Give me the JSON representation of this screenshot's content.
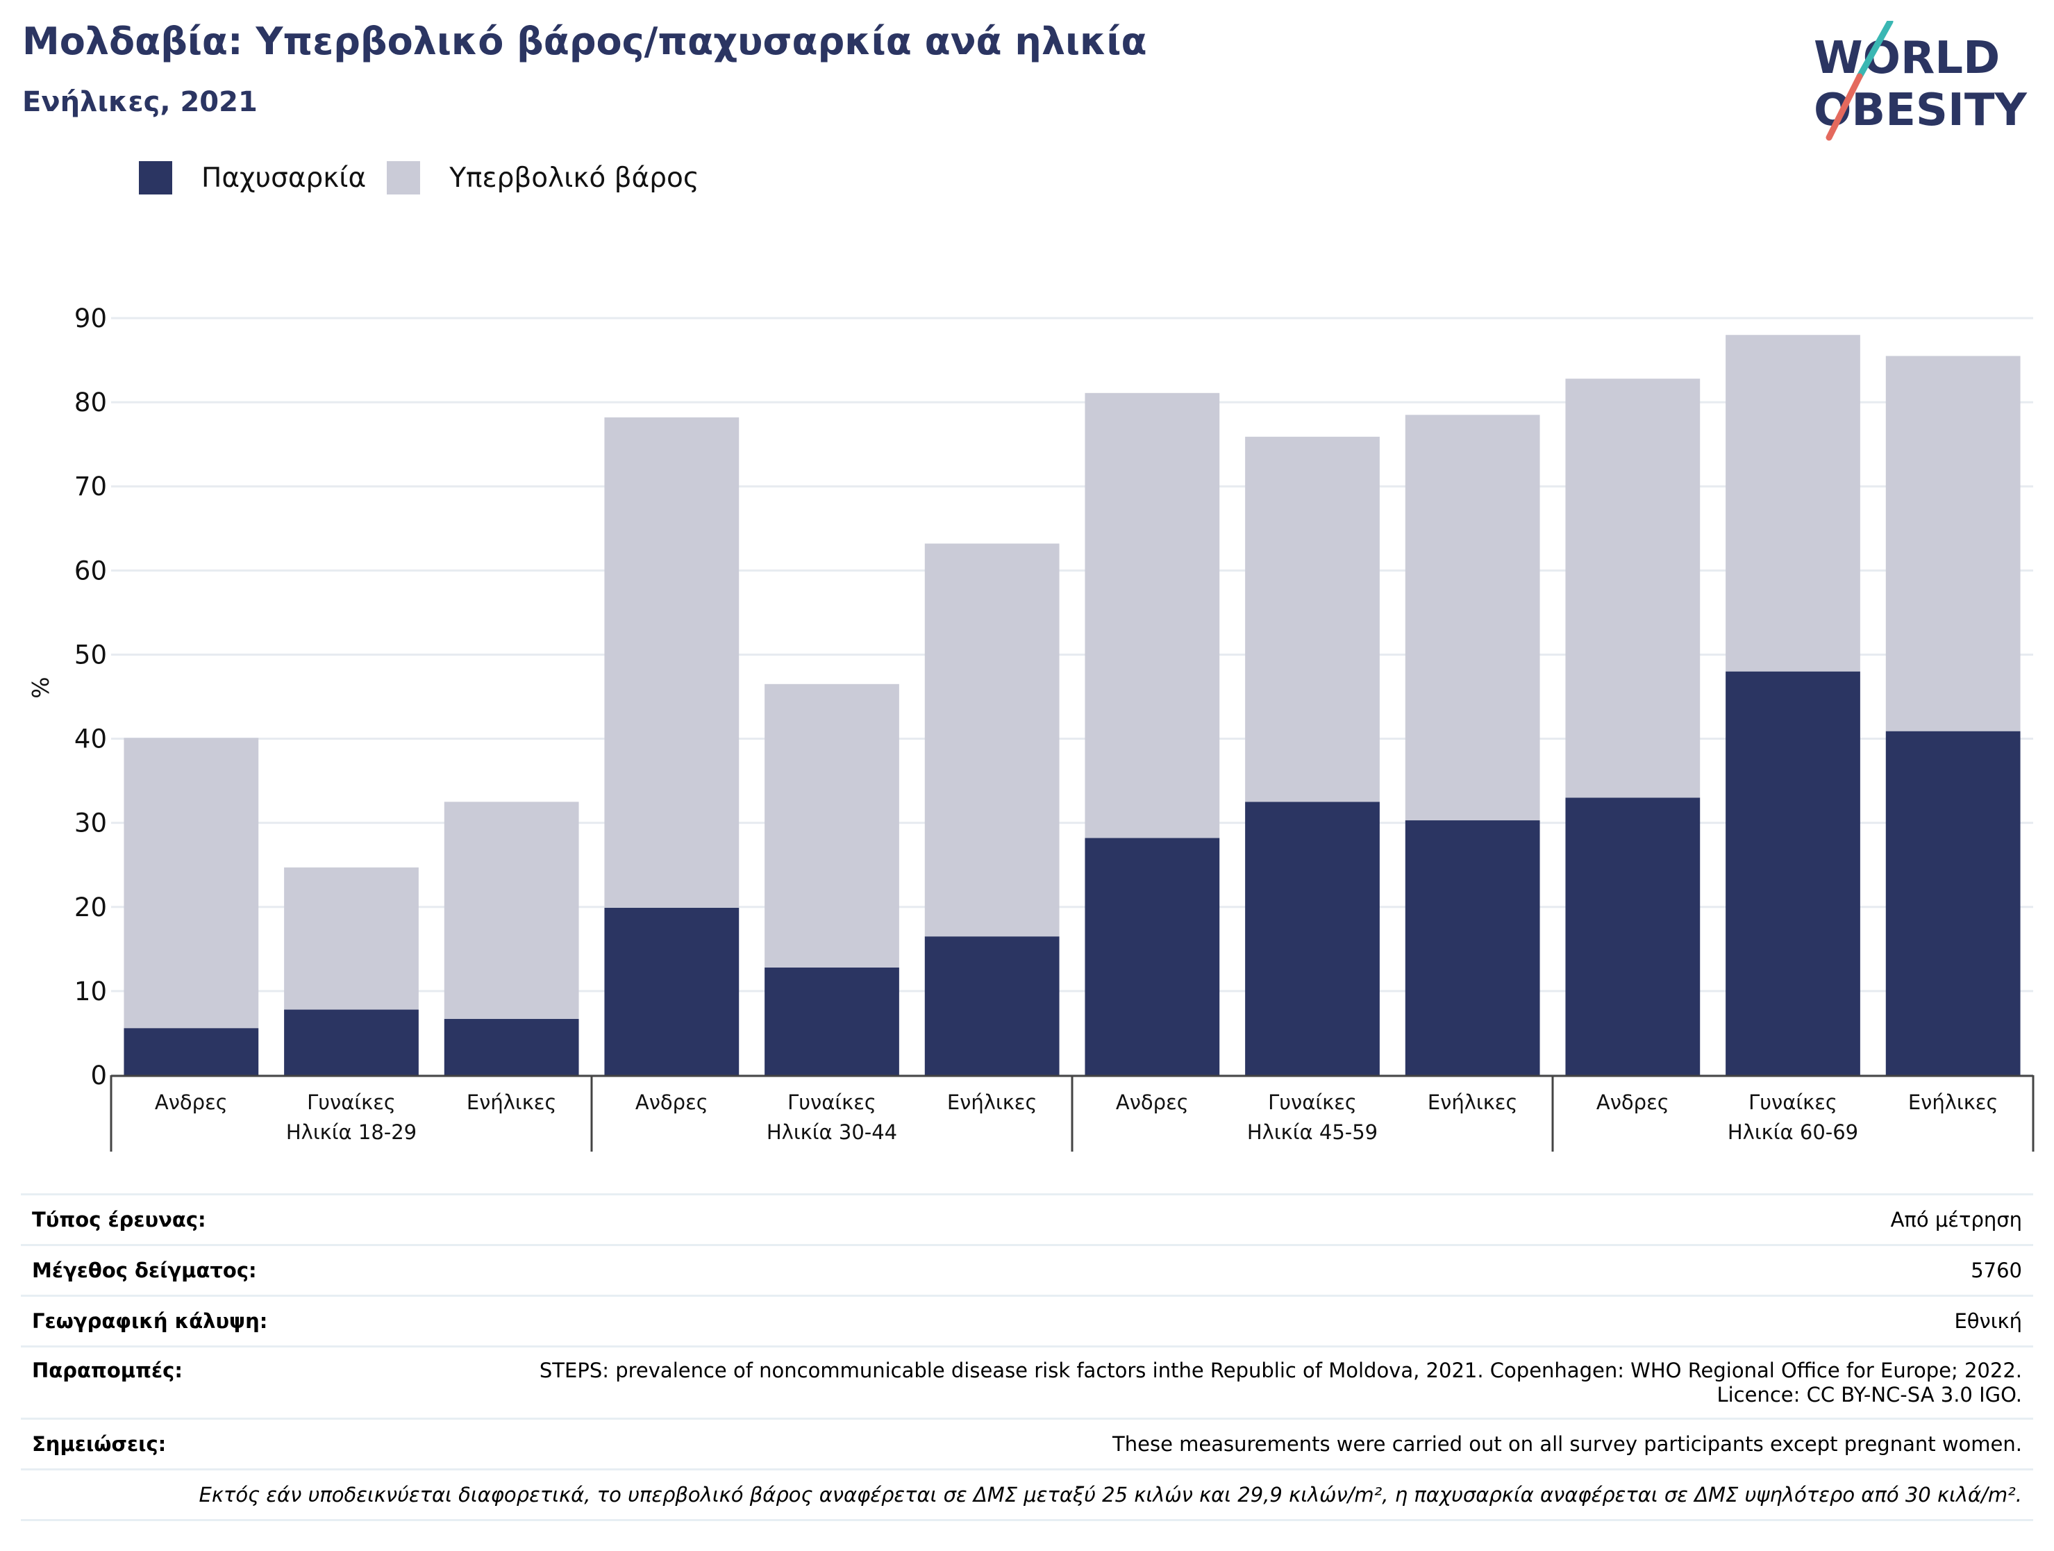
{
  "header": {
    "title": "Μολδαβία: Υπερβολικό βάρος/παχυσαρκία ανά ηλικία",
    "subtitle": "Ενήλικες, 2021"
  },
  "logo": {
    "line1": "WORLD",
    "line2": "OBESITY"
  },
  "colors": {
    "obesity": "#2b3562",
    "overweight": "#cacbd7",
    "grid": "#e7ebf0",
    "logo_slash_teal": "#3ab7b3",
    "logo_slash_red": "#e4695d"
  },
  "chart_data": {
    "type": "bar",
    "stacked": true,
    "ylabel": "%",
    "ylim": [
      0,
      90
    ],
    "yticks": [
      0,
      10,
      20,
      30,
      40,
      50,
      60,
      70,
      80,
      90
    ],
    "grid": true,
    "legend_position": "top-left",
    "groups": [
      "Ηλικία 18-29",
      "Ηλικία 30-44",
      "Ηλικία 45-59",
      "Ηλικία 60-69"
    ],
    "categories": [
      "Ανδρες",
      "Γυναίκες",
      "Ενήλικες",
      "Ανδρες",
      "Γυναίκες",
      "Ενήλικες",
      "Ανδρες",
      "Γυναίκες",
      "Ενήλικες",
      "Ανδρες",
      "Γυναίκες",
      "Ενήλικες"
    ],
    "series": [
      {
        "name": "Παχυσαρκία",
        "values": [
          5.6,
          7.8,
          6.7,
          19.9,
          12.8,
          16.5,
          28.2,
          32.5,
          30.3,
          33.0,
          48.0,
          40.9
        ]
      },
      {
        "name": "Υπερβολικό βάρος",
        "values": [
          34.5,
          16.9,
          25.8,
          58.3,
          33.7,
          46.7,
          52.9,
          43.4,
          48.2,
          49.8,
          40.0,
          44.6
        ]
      }
    ]
  },
  "info": {
    "rows": [
      {
        "label": "Τύπος έρευνας:",
        "value": "Από μέτρηση"
      },
      {
        "label": "Μέγεθος δείγματος:",
        "value": "5760"
      },
      {
        "label": "Γεωγραφική κάλυψη:",
        "value": "Εθνική"
      },
      {
        "label": "Παραπομπές:",
        "value": "STEPS: prevalence of noncommunicable disease risk factors inthe Republic of Moldova, 2021. Copenhagen: WHO Regional Office for Europe; 2022. Licence: CC BY-NC-SA 3.0 IGO."
      },
      {
        "label": "Σημειώσεις:",
        "value": "These measurements were carried out on all survey participants except pregnant women."
      }
    ],
    "footnote": "Εκτός εάν υποδεικνύεται διαφορετικά, το υπερβολικό βάρος αναφέρεται σε ΔΜΣ μεταξύ 25 κιλών και 29,9 κιλών/m², η παχυσαρκία αναφέρεται σε ΔΜΣ υψηλότερο από 30 κιλά/m²."
  }
}
